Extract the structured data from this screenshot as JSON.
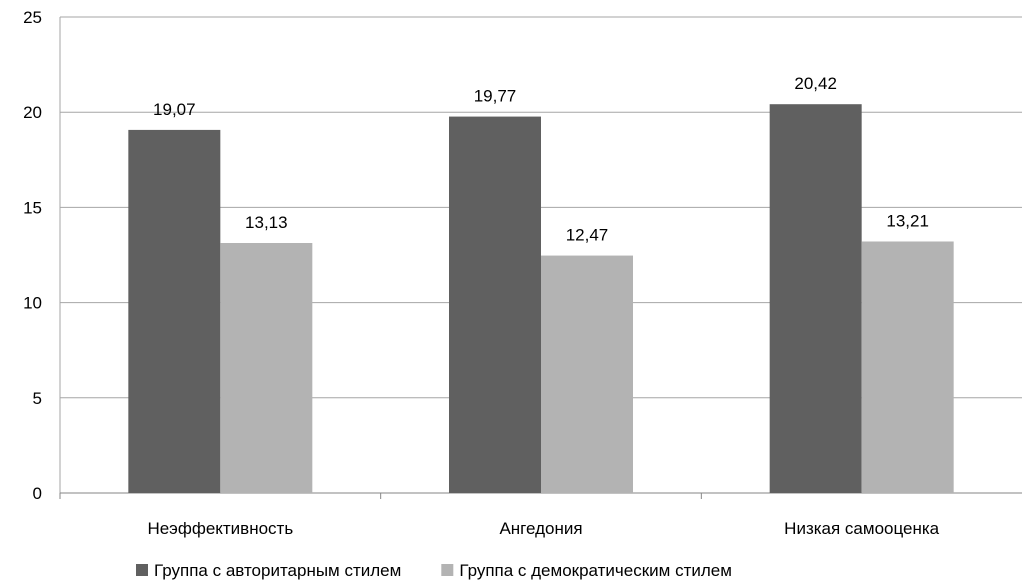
{
  "chart_data": {
    "type": "bar",
    "categories": [
      "Неэффективность",
      "Ангедония",
      "Низкая самооценка"
    ],
    "series": [
      {
        "name": "Группа с авторитарным стилем",
        "values": [
          19.07,
          19.77,
          20.42
        ],
        "labels": [
          "19,07",
          "19,77",
          "20,42"
        ],
        "color": "#606060"
      },
      {
        "name": "Группа с демократическим стилем",
        "values": [
          13.13,
          12.47,
          13.21
        ],
        "labels": [
          "13,13",
          "12,47",
          "13,21"
        ],
        "color": "#b3b3b3"
      }
    ],
    "title": "",
    "xlabel": "",
    "ylabel": "",
    "ylim": [
      0,
      25
    ],
    "yticks": [
      0,
      5,
      10,
      15,
      20,
      25
    ],
    "grid": true,
    "legend_position": "bottom"
  }
}
